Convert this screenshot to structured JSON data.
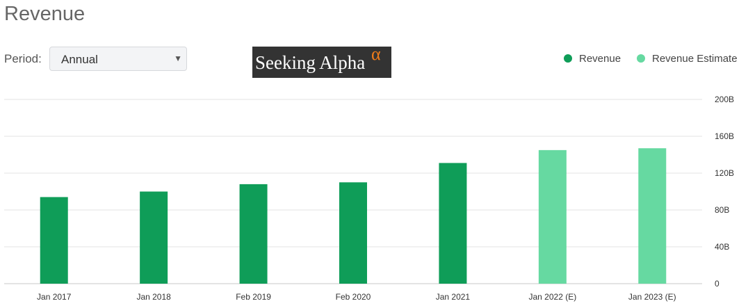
{
  "header": {
    "title": "Revenue"
  },
  "controls": {
    "period_label": "Period:",
    "period_value": "Annual"
  },
  "logo": {
    "text": "Seeking Alpha",
    "alpha": "α"
  },
  "legend": [
    {
      "label": "Revenue",
      "color": "#0f9d58"
    },
    {
      "label": "Revenue Estimate",
      "color": "#66d9a1"
    }
  ],
  "chart_data": {
    "type": "bar",
    "categories": [
      "Jan 2017",
      "Jan 2018",
      "Feb 2019",
      "Feb 2020",
      "Jan 2021",
      "Jan 2022 (E)",
      "Jan 2023 (E)"
    ],
    "values": [
      94,
      100,
      108,
      110,
      131,
      145,
      147
    ],
    "estimate": [
      false,
      false,
      false,
      false,
      false,
      true,
      true
    ],
    "series": [
      {
        "name": "Revenue",
        "color": "#0f9d58"
      },
      {
        "name": "Revenue Estimate",
        "color": "#66d9a1"
      }
    ],
    "y_ticks": [
      {
        "value": 0,
        "label": "0"
      },
      {
        "value": 40,
        "label": "40B"
      },
      {
        "value": 80,
        "label": "80B"
      },
      {
        "value": 120,
        "label": "120B"
      },
      {
        "value": 160,
        "label": "160B"
      },
      {
        "value": 200,
        "label": "200B"
      }
    ],
    "ylim": [
      0,
      200
    ],
    "grid": true,
    "legend_position": "top-right"
  }
}
